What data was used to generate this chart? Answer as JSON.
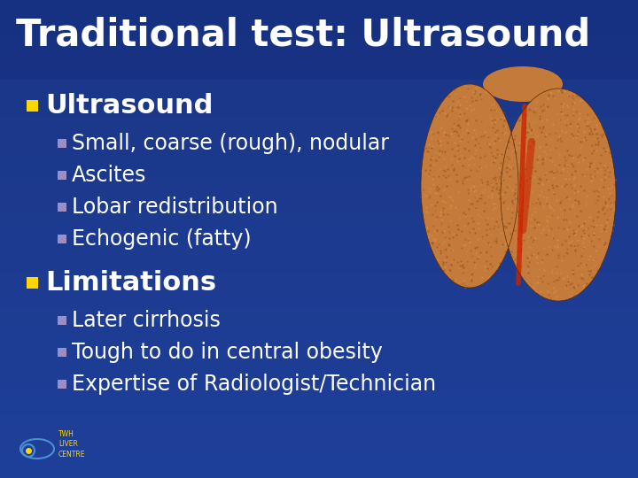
{
  "title": "Traditional test: Ultrasound",
  "bg_color_top": "#1e3f99",
  "bg_color_bottom": "#1a3585",
  "title_color": "#ffffff",
  "title_fontsize": 30,
  "bullet_color": "#ffd700",
  "sub_bullet_color": "#9b8ec4",
  "text_color": "#ffffff",
  "main_bullets": [
    {
      "text": "Ultrasound",
      "fontsize": 22,
      "sub_items": [
        "Small, coarse (rough), nodular",
        "Ascites",
        "Lobar redistribution",
        "Echogenic (fatty)"
      ]
    },
    {
      "text": "Limitations",
      "fontsize": 22,
      "sub_items": [
        "Later cirrhosis",
        "Tough to do in central obesity",
        "Expertise of Radiologist/Technician"
      ]
    }
  ],
  "sub_fontsize": 17,
  "footer_text": "TWH\nLIVER\nCENTRE",
  "footer_color": "#ffd700",
  "liver_color": "#c47a3a",
  "liver_dark": "#8b4010",
  "liver_red": "#cc2200"
}
